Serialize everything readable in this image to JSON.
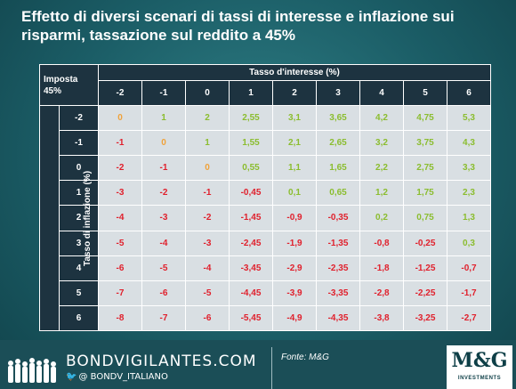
{
  "title": "Effetto di diversi scenari di tassi di interesse e inflazione sui risparmi, tassazione sul reddito a 45%",
  "chart_data": {
    "type": "table",
    "corner_label_line1": "Imposta",
    "corner_label_line2": "45%",
    "column_group_label": "Tasso d'interesse (%)",
    "row_group_label": "Tasso di inflazione (%)",
    "columns": [
      "-2",
      "-1",
      "0",
      "1",
      "2",
      "3",
      "4",
      "5",
      "6"
    ],
    "rows": [
      {
        "label": "-2",
        "values": [
          "0",
          "1",
          "2",
          "2,55",
          "3,1",
          "3,65",
          "4,2",
          "4,75",
          "5,3"
        ]
      },
      {
        "label": "-1",
        "values": [
          "-1",
          "0",
          "1",
          "1,55",
          "2,1",
          "2,65",
          "3,2",
          "3,75",
          "4,3"
        ]
      },
      {
        "label": "0",
        "values": [
          "-2",
          "-1",
          "0",
          "0,55",
          "1,1",
          "1,65",
          "2,2",
          "2,75",
          "3,3"
        ]
      },
      {
        "label": "1",
        "values": [
          "-3",
          "-2",
          "-1",
          "-0,45",
          "0,1",
          "0,65",
          "1,2",
          "1,75",
          "2,3"
        ]
      },
      {
        "label": "2",
        "values": [
          "-4",
          "-3",
          "-2",
          "-1,45",
          "-0,9",
          "-0,35",
          "0,2",
          "0,75",
          "1,3"
        ]
      },
      {
        "label": "3",
        "values": [
          "-5",
          "-4",
          "-3",
          "-2,45",
          "-1,9",
          "-1,35",
          "-0,8",
          "-0,25",
          "0,3"
        ]
      },
      {
        "label": "4",
        "values": [
          "-6",
          "-5",
          "-4",
          "-3,45",
          "-2,9",
          "-2,35",
          "-1,8",
          "-1,25",
          "-0,7"
        ]
      },
      {
        "label": "5",
        "values": [
          "-7",
          "-6",
          "-5",
          "-4,45",
          "-3,9",
          "-3,35",
          "-2,8",
          "-2,25",
          "-1,7"
        ]
      },
      {
        "label": "6",
        "values": [
          "-8",
          "-7",
          "-6",
          "-5,45",
          "-4,9",
          "-4,35",
          "-3,8",
          "-3,25",
          "-2,7"
        ]
      }
    ],
    "colors": {
      "positive": "#8bbd2f",
      "negative": "#e0202c",
      "zero": "#f0a23a"
    }
  },
  "footer": {
    "brand": "BONDVIGILANTES.COM",
    "handle": "@  BONDV_ITALIANO",
    "bird_icon": "twitter-bird-icon",
    "source": "Fonte: M&G",
    "logo_text": "M&G",
    "logo_subtext": "INVESTMENTS"
  }
}
